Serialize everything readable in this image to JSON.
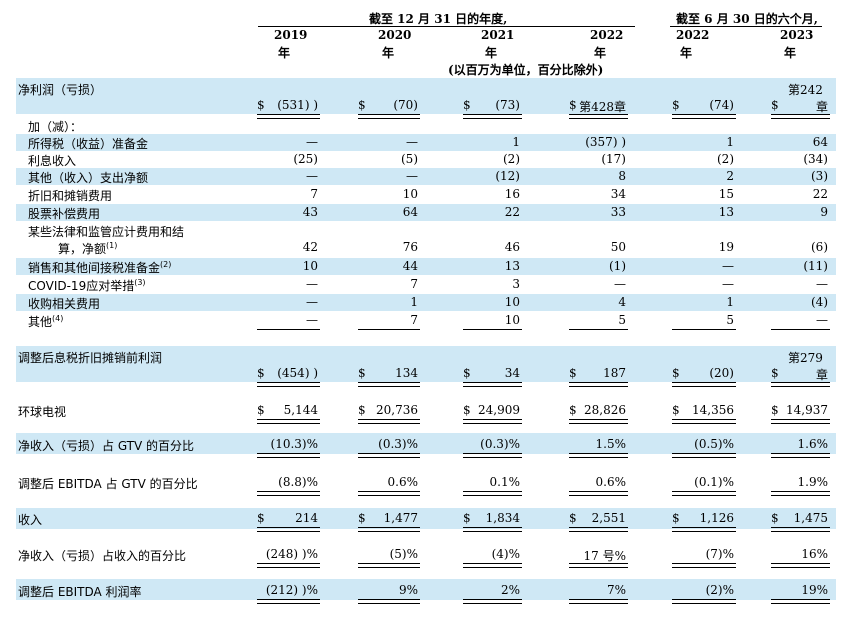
{
  "header": {
    "annual_title": "截至 12 月 31 日的年度,",
    "semi_title": "截至 6 月 30 日的六个月,",
    "years": [
      "2019",
      "2020",
      "2021",
      "2022",
      "2022",
      "2023"
    ],
    "year_unit": "年",
    "units_note": "(以百万为单位，百分比除外)"
  },
  "rows": {
    "net_income": {
      "label": "净利润（亏损）",
      "top_right": "第242",
      "vals": [
        "(531) )",
        "(70)",
        "(73)",
        "第428章",
        "(74)",
        "章"
      ]
    },
    "add_less": "加（减）：",
    "income_tax": {
      "label": "所得税（收益）准备金",
      "vals": [
        "—",
        "—",
        "1",
        "(357) )",
        "1",
        "64"
      ]
    },
    "interest": {
      "label": "利息收入",
      "vals": [
        "(25)",
        "(5)",
        "(2)",
        "(17)",
        "(2)",
        "(34)"
      ]
    },
    "other_net": {
      "label": "其他（收入）支出净额",
      "vals": [
        "—",
        "—",
        "(12)",
        "8",
        "2",
        "(3)"
      ]
    },
    "dep_amort": {
      "label": "折旧和摊销费用",
      "vals": [
        "7",
        "10",
        "16",
        "34",
        "15",
        "22"
      ]
    },
    "stock_comp": {
      "label": "股票补偿费用",
      "vals": [
        "43",
        "64",
        "22",
        "33",
        "13",
        "9"
      ]
    },
    "legal": {
      "label_line1": "某些法律和监管应计费用和结",
      "label_line2": "算，净额",
      "sup": "(1)",
      "vals": [
        "42",
        "76",
        "46",
        "50",
        "19",
        "(6)"
      ]
    },
    "sales_tax": {
      "label": "销售和其他间接税准备金",
      "sup": "(2)",
      "vals": [
        "10",
        "44",
        "13",
        "(1)",
        "—",
        "(11)"
      ]
    },
    "covid": {
      "label": "COVID-19应对举措",
      "sup": "(3)",
      "vals": [
        "—",
        "7",
        "3",
        "—",
        "—",
        "—"
      ]
    },
    "acquisition": {
      "label": "收购相关费用",
      "vals": [
        "—",
        "1",
        "10",
        "4",
        "1",
        "(4)"
      ]
    },
    "other": {
      "label": "其他",
      "sup": "(4)",
      "vals": [
        "—",
        "7",
        "10",
        "5",
        "5",
        "—"
      ]
    },
    "adj_ebitda": {
      "label": "调整后息税折旧摊销前利润",
      "top_right": "第279",
      "vals": [
        "(454) )",
        "134",
        "34",
        "187",
        "(20)",
        "章"
      ]
    },
    "gtv": {
      "label": "环球电视",
      "vals": [
        "5,144",
        "20,736",
        "24,909",
        "28,826",
        "14,356",
        "14,937"
      ]
    },
    "ni_gtv": {
      "label": "净收入（亏损）占 GTV 的百分比",
      "vals": [
        "(10.3)%",
        "(0.3)%",
        "(0.3)%",
        "1.5%",
        "(0.5)%",
        "1.6%"
      ]
    },
    "ebitda_gtv": {
      "label": "调整后 EBITDA 占 GTV 的百分比",
      "vals": [
        "(8.8)%",
        "0.6%",
        "0.1%",
        "0.6%",
        "(0.1)%",
        "1.9%"
      ]
    },
    "revenue": {
      "label": "收入",
      "vals": [
        "214",
        "1,477",
        "1,834",
        "2,551",
        "1,126",
        "1,475"
      ]
    },
    "ni_rev": {
      "label": "净收入（亏损）占收入的百分比",
      "vals": [
        "(248) )%",
        "(5)%",
        "(4)%",
        "17 号%",
        "(7)%",
        "16%"
      ]
    },
    "ebitda_margin": {
      "label": "调整后 EBITDA 利润率",
      "vals": [
        "(212) )%",
        "9%",
        "2%",
        "7%",
        "(2)%",
        "19%"
      ]
    }
  },
  "currency_symbol": "$"
}
